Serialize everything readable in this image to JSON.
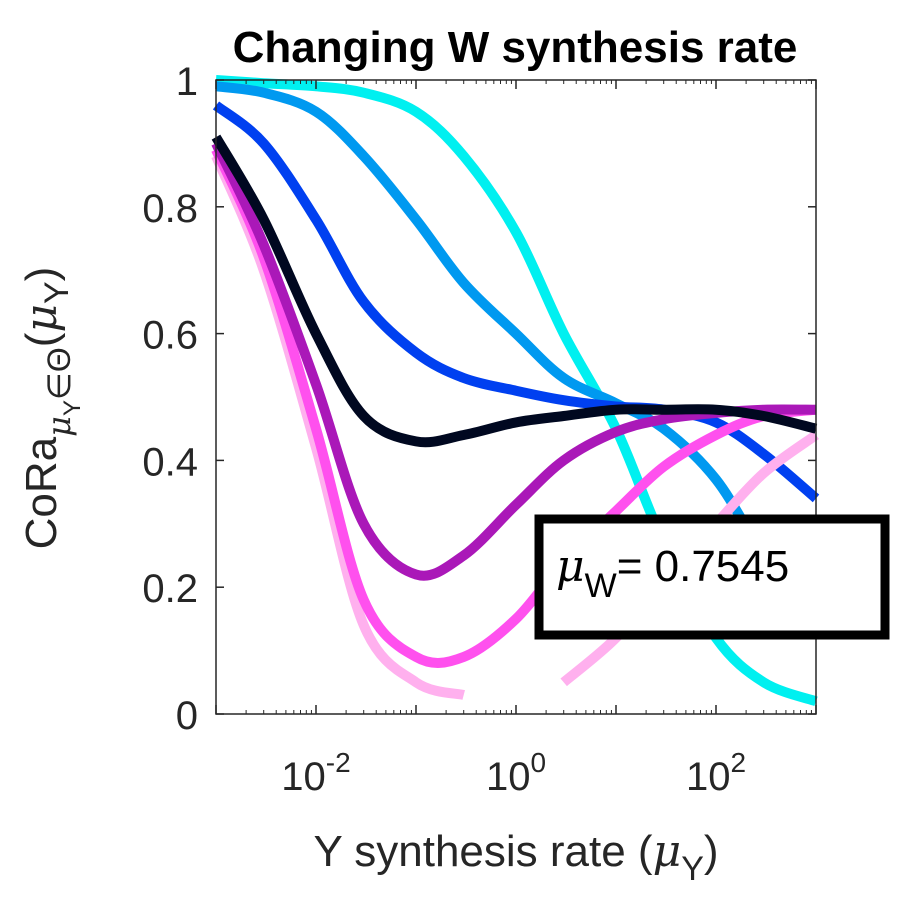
{
  "chart_data": {
    "type": "line",
    "title": "Changing W synthesis rate",
    "xlabel_prefix": "Y synthesis rate (",
    "xlabel_mu": "μ",
    "xlabel_sub": "Y",
    "xlabel_suffix": ")",
    "ylabel_base": "CoRa",
    "ylabel_sub_mu": "μ",
    "ylabel_sub_sub": "Y",
    "ylabel_sub_rest": "∈Θ",
    "ylabel_arg_open": "(",
    "ylabel_arg_mu": "μ",
    "ylabel_arg_sub": "Y",
    "ylabel_arg_close": ")",
    "x_scale": "log",
    "xlim": [
      0.001,
      1000
    ],
    "ylim": [
      0,
      1
    ],
    "x_ticks": [
      {
        "base": "10",
        "exp": "-2"
      },
      {
        "base": "10",
        "exp": "0"
      },
      {
        "base": "10",
        "exp": "2"
      }
    ],
    "y_ticks": [
      "0",
      "0.2",
      "0.4",
      "0.6",
      "0.8",
      "1"
    ],
    "x": [
      0.001,
      0.003,
      0.01,
      0.03,
      0.1,
      0.3,
      1,
      3,
      10,
      30,
      100,
      300,
      1000
    ],
    "series": [
      {
        "color": "#00f0f0",
        "values": [
          1.0,
          0.995,
          0.99,
          0.98,
          0.95,
          0.88,
          0.76,
          0.6,
          0.45,
          0.27,
          0.12,
          0.05,
          0.02
        ]
      },
      {
        "color": "#0099f0",
        "values": [
          0.99,
          0.98,
          0.95,
          0.88,
          0.78,
          0.68,
          0.6,
          0.53,
          0.49,
          0.45,
          0.37,
          0.25,
          0.14
        ]
      },
      {
        "color": "#0040f0",
        "values": [
          0.96,
          0.9,
          0.78,
          0.65,
          0.57,
          0.53,
          0.51,
          0.495,
          0.485,
          0.48,
          0.46,
          0.41,
          0.34
        ]
      },
      {
        "color": "#000820",
        "values": [
          0.91,
          0.78,
          0.6,
          0.47,
          0.43,
          0.44,
          0.46,
          0.47,
          0.48,
          0.48,
          0.48,
          0.47,
          0.45
        ]
      },
      {
        "color": "#aa18b8",
        "values": [
          0.9,
          0.74,
          0.52,
          0.3,
          0.22,
          0.25,
          0.33,
          0.4,
          0.445,
          0.465,
          0.475,
          0.48,
          0.48
        ]
      },
      {
        "color": "#ff50ee",
        "values": [
          0.89,
          0.72,
          0.45,
          0.18,
          0.09,
          0.09,
          0.15,
          0.24,
          0.32,
          0.39,
          0.44,
          0.47,
          0.48
        ]
      },
      {
        "color": "#ffb0ee",
        "values": [
          0.88,
          0.7,
          0.42,
          0.14,
          0.05,
          0.03,
          null,
          0.05,
          0.12,
          0.21,
          0.3,
          0.38,
          0.44
        ]
      }
    ],
    "annotation": {
      "mu": "μ",
      "sub": "W",
      "text": "= 0.7545"
    },
    "grid": false,
    "legend": "none"
  }
}
